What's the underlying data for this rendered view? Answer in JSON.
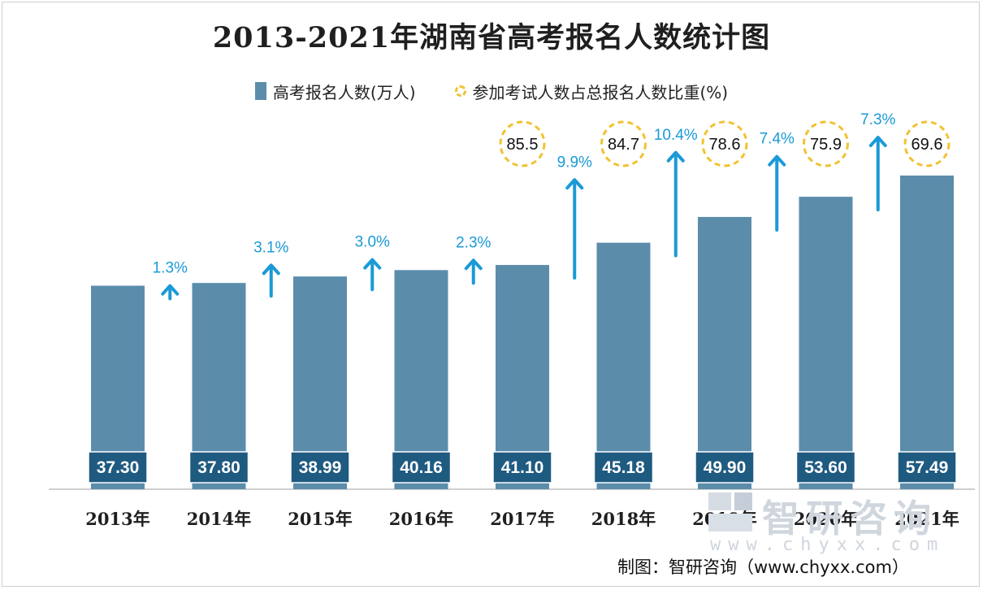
{
  "chart_data": {
    "type": "bar",
    "title": "2013-2021年湖南省高考报名人数统计图",
    "categories": [
      "2013年",
      "2014年",
      "2015年",
      "2016年",
      "2017年",
      "2018年",
      "2019年",
      "2020年",
      "2021年"
    ],
    "series": [
      {
        "name": "高考报名人数(万人)",
        "values": [
          37.3,
          37.8,
          38.99,
          40.16,
          41.1,
          45.18,
          49.9,
          53.6,
          57.49
        ],
        "labels": [
          "37.30",
          "37.80",
          "38.99",
          "40.16",
          "41.10",
          "45.18",
          "49.90",
          "53.60",
          "57.49"
        ]
      },
      {
        "name": "参加考试人数占总报名人数比重(%)",
        "values": [
          null,
          null,
          null,
          null,
          85.5,
          84.7,
          78.6,
          75.9,
          69.6
        ],
        "labels": [
          "",
          "",
          "",
          "",
          "85.5",
          "84.7",
          "78.6",
          "75.9",
          "69.6"
        ]
      }
    ],
    "growth": {
      "values": [
        1.3,
        3.1,
        3.0,
        2.3,
        9.9,
        10.4,
        7.4,
        7.3
      ],
      "labels": [
        "1.3%",
        "3.1%",
        "3.0%",
        "2.3%",
        "9.9%",
        "10.4%",
        "7.4%",
        "7.3%"
      ]
    },
    "ylim": [
      0,
      60
    ],
    "xlabel": "",
    "ylabel": "",
    "grid": false,
    "legend": "top-center",
    "colors": {
      "bar": "#5b8dab",
      "label_box": "#1f5a80",
      "arrow": "#1a9ad6",
      "ring": "#f2c230"
    }
  },
  "watermark": {
    "brand": "智研咨询",
    "url": "www.chyxx.com"
  },
  "credit": "制图：智研咨询（www.chyxx.com）"
}
